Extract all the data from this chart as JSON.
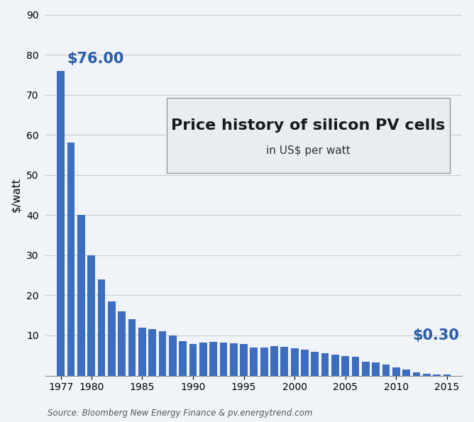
{
  "years": [
    1977,
    1978,
    1979,
    1980,
    1981,
    1982,
    1983,
    1984,
    1985,
    1986,
    1987,
    1988,
    1989,
    1990,
    1991,
    1992,
    1993,
    1994,
    1995,
    1996,
    1997,
    1998,
    1999,
    2000,
    2001,
    2002,
    2003,
    2004,
    2005,
    2006,
    2007,
    2008,
    2009,
    2010,
    2011,
    2012,
    2013,
    2014,
    2015
  ],
  "prices": [
    76.0,
    58.0,
    40.0,
    30.0,
    24.0,
    18.5,
    16.0,
    14.0,
    12.0,
    11.5,
    11.0,
    10.0,
    8.5,
    7.9,
    8.2,
    8.4,
    8.3,
    8.1,
    7.9,
    6.9,
    7.0,
    7.3,
    7.1,
    6.8,
    6.5,
    6.0,
    5.5,
    5.2,
    4.9,
    4.7,
    3.5,
    3.3,
    2.8,
    2.0,
    1.5,
    0.8,
    0.5,
    0.35,
    0.3
  ],
  "bar_color": "#3d6dbf",
  "background_color": "#f0f4f8",
  "title_main": "Price history of silicon PV cells",
  "title_sub": "in US$ per watt",
  "ylabel": "$/watt",
  "ylim": [
    0,
    90
  ],
  "yticks": [
    10,
    20,
    30,
    40,
    50,
    60,
    70,
    80,
    90
  ],
  "xticks": [
    1977,
    1980,
    1985,
    1990,
    1995,
    2000,
    2005,
    2010,
    2015
  ],
  "annotation_start_label": "$76.00",
  "annotation_end_label": "$0.30",
  "source_text": "Source: Bloomberg New Energy Finance & pv.energytrend.com",
  "title_fontsize": 16,
  "subtitle_fontsize": 11,
  "annotation_fontsize": 15,
  "label_color": "#2a5caa",
  "grid_color": "#cccccc",
  "box_facecolor": "#e8edf2",
  "box_edgecolor": "#999999"
}
